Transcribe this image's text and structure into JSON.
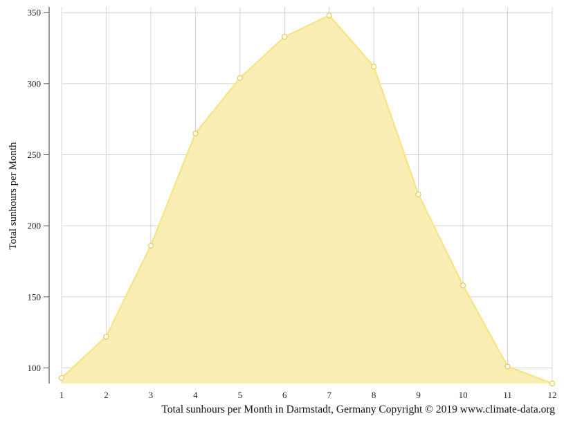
{
  "chart_data": {
    "type": "area",
    "x": [
      1,
      2,
      3,
      4,
      5,
      6,
      7,
      8,
      9,
      10,
      11,
      12
    ],
    "values": [
      93,
      122,
      186,
      265,
      304,
      333,
      348,
      312,
      222,
      158,
      101,
      89
    ],
    "xlabel": "",
    "ylabel": "Total sunhours per Month",
    "caption": "Total sunhours per Month in Darmstadt, Germany Copyright © 2019 www.climate-data.org",
    "xlim": [
      1,
      12
    ],
    "ylim": [
      89,
      354
    ],
    "yticks": [
      100,
      150,
      200,
      250,
      300,
      350
    ],
    "grid": true,
    "fill_color": "#f9eeb0",
    "line_color": "#f7e488",
    "marker_color": "#e8cf5e"
  }
}
